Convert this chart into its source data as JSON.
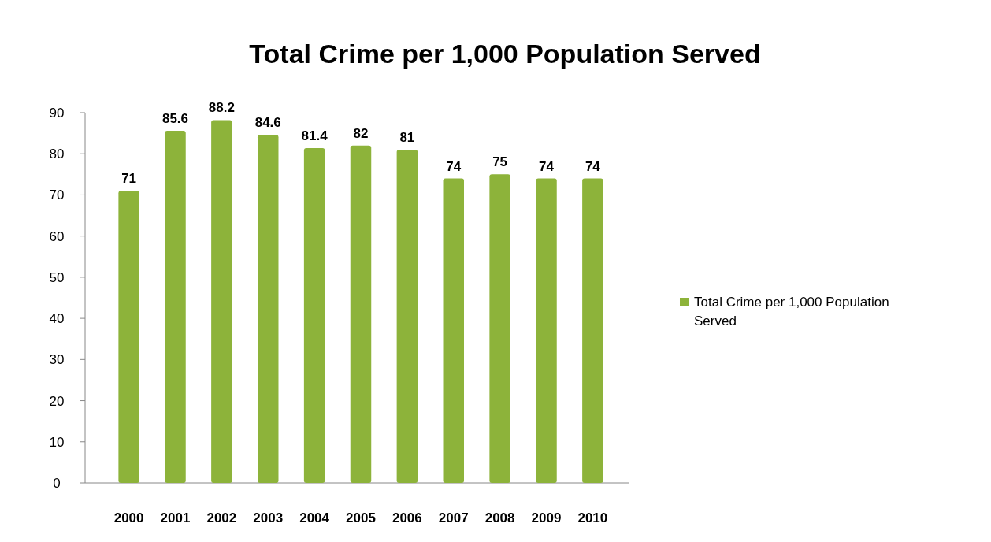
{
  "chart_data": {
    "type": "bar",
    "title": "Total Crime per 1,000 Population Served",
    "categories": [
      "2000",
      "2001",
      "2002",
      "2003",
      "2004",
      "2005",
      "2006",
      "2007",
      "2008",
      "2009",
      "2010"
    ],
    "series": [
      {
        "name": "Total Crime per 1,000 Population Served",
        "color": "#8db33a",
        "values": [
          71,
          85.6,
          88.2,
          84.6,
          81.4,
          82,
          81,
          74,
          75,
          74,
          74
        ]
      }
    ],
    "ylim": [
      0,
      90
    ],
    "yticks": [
      0,
      10,
      20,
      30,
      40,
      50,
      60,
      70,
      80,
      90
    ],
    "data_labels": true,
    "legend": "right",
    "grid": false
  }
}
